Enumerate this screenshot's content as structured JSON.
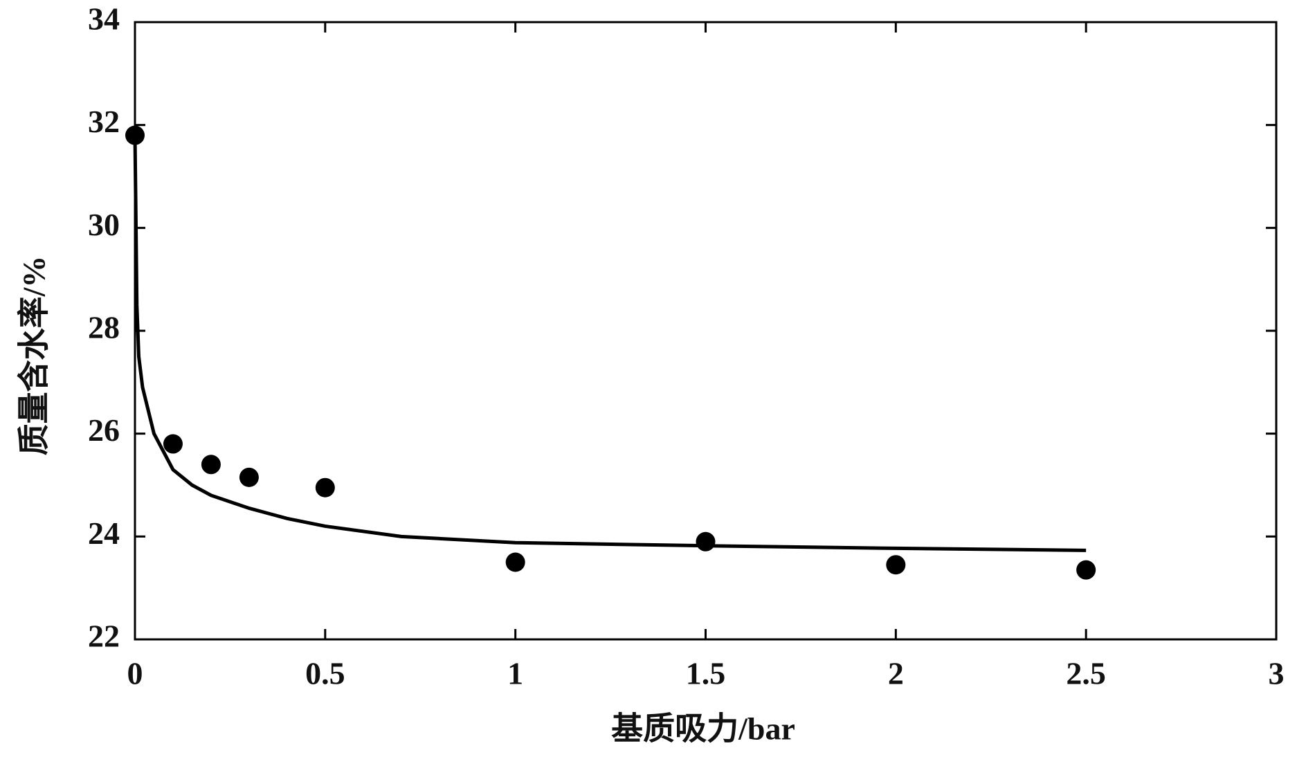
{
  "chart_data": {
    "type": "scatter",
    "x_label": "基质吸力/bar",
    "y_label": "质量含水率/%",
    "xlim": [
      0,
      3
    ],
    "xticks": [
      0,
      0.5,
      1,
      1.5,
      2,
      2.5,
      3
    ],
    "ylim": [
      22,
      34
    ],
    "yticks": [
      22,
      24,
      26,
      28,
      30,
      32,
      34
    ],
    "series": [
      {
        "style": "marker",
        "color": "#000000",
        "x": [
          0,
          0.1,
          0.2,
          0.3,
          0.5,
          1,
          1.5,
          2,
          2.5
        ],
        "values": [
          31.8,
          25.8,
          25.4,
          25.15,
          24.95,
          23.5,
          23.9,
          23.45,
          23.35
        ]
      },
      {
        "style": "line",
        "color": "#000000",
        "x": [
          0,
          0.002,
          0.005,
          0.01,
          0.02,
          0.05,
          0.1,
          0.15,
          0.2,
          0.3,
          0.4,
          0.5,
          0.7,
          1,
          1.5,
          2,
          2.5
        ],
        "values": [
          31.8,
          30.5,
          28.5,
          27.5,
          26.9,
          26.0,
          25.3,
          25.0,
          24.8,
          24.55,
          24.35,
          24.2,
          24.0,
          23.88,
          23.82,
          23.77,
          23.73
        ]
      }
    ]
  }
}
